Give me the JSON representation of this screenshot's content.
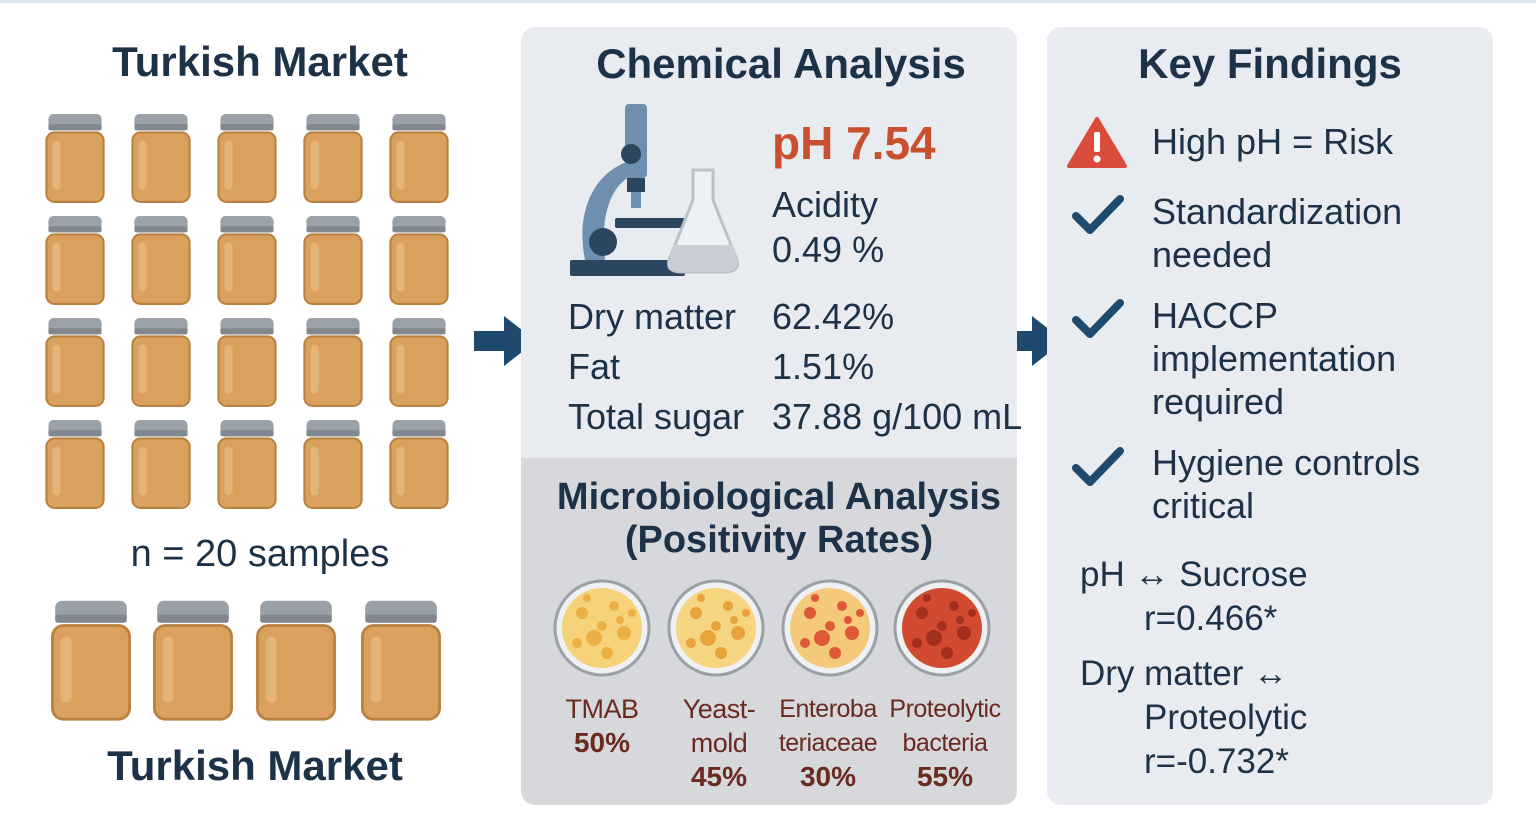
{
  "market": {
    "title": "Turkish Market",
    "sample_count": "n = 20 samples",
    "footer": "Turkish Market"
  },
  "chemical": {
    "title": "Chemical Analysis",
    "ph": "pH 7.54",
    "acidity_label": "Acidity",
    "acidity_value": "0.49 %",
    "rows": [
      {
        "label": "Dry matter",
        "value": "62.42%"
      },
      {
        "label": "Fat",
        "value": "1.51%"
      },
      {
        "label": "Total sugar",
        "value": "37.88 g/100 mL"
      }
    ]
  },
  "micro": {
    "title_line1": "Microbiological Analysis",
    "title_line2": "(Positivity Rates)",
    "items": [
      {
        "name_line1": "TMAB",
        "name_line2": "",
        "rate": "50%",
        "rate_value": 50
      },
      {
        "name_line1": "Yeast-",
        "name_line2": "mold",
        "rate": "45%",
        "rate_value": 45
      },
      {
        "name_line1": "Enteroba",
        "name_line2": "teriaceae",
        "rate": "30%",
        "rate_value": 30
      },
      {
        "name_line1": "Proteolytic",
        "name_line2": "bacteria",
        "rate": "55%",
        "rate_value": 55
      }
    ]
  },
  "findings": {
    "title": "Key Findings",
    "items": [
      {
        "icon": "warning-icon",
        "line1": "High pH = Risk",
        "line2": "",
        "line3": ""
      },
      {
        "icon": "check-icon",
        "line1": "Standardization",
        "line2": "needed",
        "line3": ""
      },
      {
        "icon": "check-icon",
        "line1": "HACCP",
        "line2": "implementation",
        "line3": "required"
      },
      {
        "icon": "check-icon",
        "line1": "Hygiene controls",
        "line2": "critical",
        "line3": ""
      }
    ],
    "correlations": [
      {
        "line1": "pH ↔ Sucrose",
        "line2": "r=0.466*"
      },
      {
        "line1": "Dry matter ↔",
        "line2": "Proteolytic",
        "line3": "r=-0.732*"
      }
    ]
  },
  "colors": {
    "navy": "#1d3147",
    "ph_red": "#c8502e",
    "jar_body": "#d9a05e",
    "jar_lid": "#9aa1a8",
    "warning": "#d94b3a",
    "arrow": "#1f4a6e"
  }
}
